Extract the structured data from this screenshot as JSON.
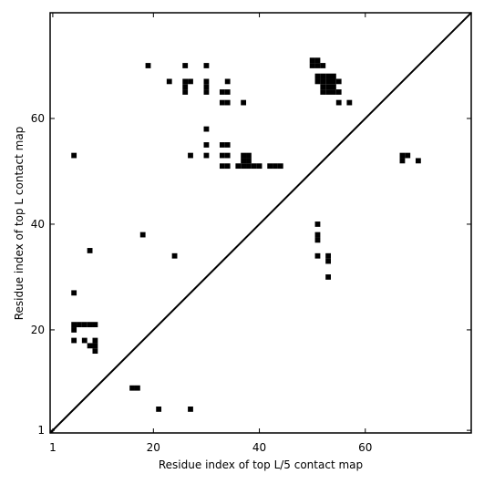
{
  "chart_data": {
    "type": "scatter",
    "xlabel": "Residue index of top L/5 contact map",
    "ylabel": "Residue index of top L contact map",
    "xlim": [
      0.5,
      80
    ],
    "ylim": [
      0.5,
      80
    ],
    "xticks": [
      1,
      20,
      40,
      60
    ],
    "yticks": [
      1,
      20,
      40,
      60
    ],
    "marker": "square",
    "diagonal": true,
    "series": [
      {
        "color": "#000000",
        "x": [
          19,
          26,
          30,
          23,
          26,
          27,
          26,
          26,
          30,
          30,
          30,
          34,
          33,
          34,
          33,
          34,
          37,
          30,
          30,
          33,
          34,
          27,
          30,
          33,
          34,
          5,
          37,
          38,
          37,
          38,
          33,
          34,
          36,
          37,
          38,
          39,
          40,
          42,
          43,
          44,
          50,
          51,
          50,
          51,
          52,
          51,
          52,
          53,
          54,
          51,
          52,
          53,
          54,
          55,
          52,
          53,
          54,
          52,
          53,
          54,
          55,
          55,
          57,
          67,
          68,
          67,
          70,
          51,
          51,
          51,
          51,
          53,
          53,
          53,
          18,
          24,
          8,
          5,
          5,
          6,
          7,
          8,
          9,
          5,
          5,
          7,
          9,
          8,
          9,
          9,
          16,
          17,
          21,
          27
        ],
        "y": [
          70,
          70,
          70,
          67,
          67,
          67,
          66,
          65,
          67,
          66,
          65,
          67,
          65,
          65,
          63,
          63,
          63,
          58,
          55,
          55,
          55,
          53,
          53,
          53,
          53,
          53,
          53,
          53,
          52,
          52,
          51,
          51,
          51,
          51,
          51,
          51,
          51,
          51,
          51,
          51,
          71,
          71,
          70,
          70,
          70,
          68,
          68,
          68,
          68,
          67,
          67,
          67,
          67,
          67,
          66,
          66,
          66,
          65,
          65,
          65,
          65,
          63,
          63,
          53,
          53,
          52,
          52,
          40,
          38,
          37,
          34,
          34,
          33,
          30,
          38,
          34,
          35,
          27,
          21,
          21,
          21,
          21,
          21,
          20,
          18,
          18,
          18,
          17,
          17,
          16,
          9,
          9,
          5,
          5
        ]
      }
    ]
  }
}
